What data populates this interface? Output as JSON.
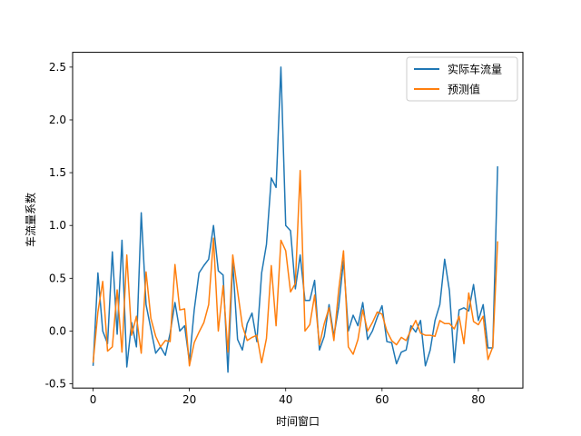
{
  "chart_data": {
    "type": "line",
    "xlabel": "时间窗口",
    "ylabel": "车流量系数",
    "xlim": [
      -4.25,
      89.25
    ],
    "ylim": [
      -0.54,
      2.64
    ],
    "xticks": [
      0,
      20,
      40,
      60,
      80
    ],
    "yticks": [
      -0.5,
      0.0,
      0.5,
      1.0,
      1.5,
      2.0,
      2.5
    ],
    "legend_position": "upper right",
    "grid": false,
    "series": [
      {
        "name": "实际车流量",
        "color": "#1f77b4",
        "values": [
          -0.33,
          0.55,
          0.0,
          -0.12,
          0.75,
          -0.03,
          0.86,
          -0.34,
          0.08,
          -0.15,
          1.12,
          0.25,
          0.02,
          -0.21,
          -0.15,
          -0.23,
          -0.02,
          0.27,
          0.0,
          0.05,
          -0.29,
          0.2,
          0.55,
          0.62,
          0.68,
          1.0,
          0.57,
          0.53,
          -0.39,
          0.65,
          -0.08,
          -0.18,
          0.07,
          0.17,
          -0.1,
          0.55,
          0.82,
          1.45,
          1.36,
          2.5,
          1.0,
          0.95,
          0.4,
          0.72,
          0.29,
          0.29,
          0.48,
          -0.18,
          -0.05,
          0.25,
          -0.05,
          0.23,
          0.67,
          0.0,
          0.15,
          0.05,
          0.27,
          -0.08,
          0.0,
          0.13,
          0.24,
          -0.1,
          -0.11,
          -0.31,
          -0.2,
          -0.18,
          0.05,
          -0.01,
          0.1,
          -0.33,
          -0.18,
          0.1,
          0.25,
          0.68,
          0.38,
          -0.3,
          0.2,
          0.22,
          0.19,
          0.44,
          0.1,
          0.25,
          -0.16,
          -0.16,
          1.56
        ]
      },
      {
        "name": "预测值",
        "color": "#ff7f0e",
        "values": [
          -0.3,
          0.18,
          0.47,
          -0.19,
          -0.15,
          0.39,
          -0.2,
          0.72,
          -0.04,
          0.14,
          -0.21,
          0.56,
          0.12,
          -0.05,
          -0.15,
          -0.09,
          -0.1,
          0.63,
          0.2,
          0.21,
          -0.33,
          -0.11,
          -0.01,
          0.08,
          0.25,
          0.88,
          0.0,
          0.43,
          -0.2,
          0.72,
          0.38,
          0.05,
          -0.09,
          -0.06,
          -0.04,
          -0.3,
          -0.07,
          0.62,
          0.05,
          0.86,
          0.76,
          0.37,
          0.45,
          1.52,
          0.0,
          0.06,
          0.34,
          -0.13,
          0.07,
          0.22,
          -0.09,
          0.39,
          0.76,
          -0.15,
          -0.22,
          -0.08,
          0.2,
          0.0,
          0.08,
          0.18,
          0.16,
          0.0,
          -0.09,
          -0.13,
          -0.06,
          -0.09,
          0.01,
          0.1,
          -0.02,
          -0.04,
          -0.04,
          -0.05,
          0.1,
          0.07,
          0.07,
          0.02,
          0.14,
          -0.12,
          0.36,
          0.09,
          0.06,
          0.14,
          -0.27,
          -0.15,
          0.85
        ]
      }
    ]
  }
}
